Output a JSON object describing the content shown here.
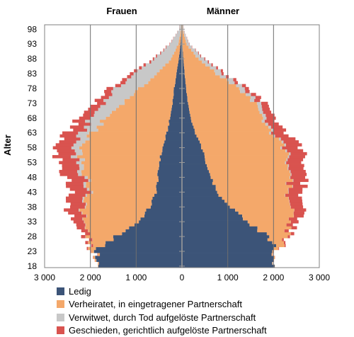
{
  "chart_data": {
    "type": "population-pyramid",
    "left_title": "Frauen",
    "right_title": "Männer",
    "ylabel": "Alter",
    "age_min": 18,
    "age_max": 99,
    "age_ticks": [
      98,
      93,
      88,
      83,
      78,
      73,
      68,
      63,
      58,
      53,
      48,
      43,
      38,
      33,
      28,
      23,
      18
    ],
    "x_ticks": [
      {
        "value": -3000,
        "label": "3 000"
      },
      {
        "value": -2000,
        "label": "2 000"
      },
      {
        "value": -1000,
        "label": "1 000"
      },
      {
        "value": 0,
        "label": "0"
      },
      {
        "value": 1000,
        "label": "1 000"
      },
      {
        "value": 2000,
        "label": "2 000"
      },
      {
        "value": 3000,
        "label": "3 000"
      }
    ],
    "xlim": [
      -3000,
      3000
    ],
    "series": [
      {
        "name": "Ledig",
        "color": "#3c5478"
      },
      {
        "name": "Verheiratet, in eingetragener Partnerschaft",
        "color": "#f4a86a"
      },
      {
        "name": "Verwitwet, durch Tod aufgelöste Partnerschaft",
        "color": "#c8c8c8"
      },
      {
        "name": "Geschieden, gerichtlich aufgelöste Partnerschaft",
        "color": "#d9534f"
      }
    ],
    "key_points": {
      "frauen": {
        "ages": [
          18,
          23,
          28,
          33,
          38,
          43,
          48,
          53,
          58,
          63,
          68,
          73,
          78,
          83,
          88,
          93,
          98
        ],
        "ledig": [
          1750,
          1900,
          1450,
          950,
          700,
          570,
          520,
          500,
          420,
          330,
          260,
          210,
          170,
          120,
          70,
          30,
          8
        ],
        "verheiratet": [
          10,
          60,
          580,
          1200,
          1450,
          1450,
          1550,
          1700,
          1800,
          1620,
          1400,
          1100,
          750,
          420,
          170,
          50,
          10
        ],
        "verwitwet": [
          0,
          0,
          5,
          10,
          20,
          40,
          70,
          110,
          170,
          230,
          330,
          430,
          520,
          500,
          370,
          180,
          40
        ],
        "geschieden": [
          0,
          10,
          90,
          230,
          330,
          370,
          380,
          380,
          400,
          330,
          250,
          200,
          140,
          80,
          30,
          8,
          2
        ]
      },
      "maenner": {
        "ages": [
          18,
          23,
          28,
          33,
          38,
          43,
          48,
          53,
          58,
          63,
          68,
          73,
          78,
          83,
          88,
          93,
          98
        ],
        "ledig": [
          1950,
          2050,
          1900,
          1450,
          1050,
          770,
          620,
          530,
          430,
          290,
          190,
          130,
          90,
          60,
          30,
          10,
          3
        ],
        "verheiratet": [
          5,
          30,
          400,
          950,
          1330,
          1550,
          1700,
          1800,
          1780,
          1650,
          1550,
          1450,
          1150,
          700,
          320,
          90,
          15
        ],
        "verwitwet": [
          0,
          0,
          0,
          2,
          5,
          10,
          15,
          25,
          35,
          45,
          70,
          90,
          120,
          140,
          120,
          60,
          15
        ],
        "geschieden": [
          0,
          5,
          50,
          170,
          270,
          300,
          320,
          340,
          350,
          280,
          200,
          140,
          90,
          50,
          20,
          5,
          2
        ]
      }
    }
  }
}
